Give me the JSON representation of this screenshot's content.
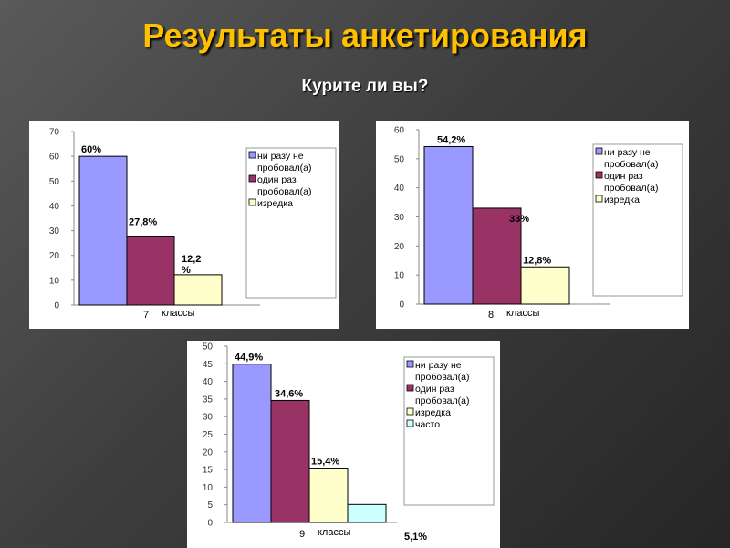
{
  "header": {
    "title": "Результаты анкетирования",
    "subtitle": "Курите ли вы?"
  },
  "colors": {
    "series": [
      "#9999ff",
      "#993366",
      "#ffffcc",
      "#ccffff"
    ],
    "accent_title": "#ffc000",
    "background": "#3e3e3e"
  },
  "chart_data": [
    {
      "type": "bar",
      "xlabel": "классы",
      "categories": [
        "7"
      ],
      "ylim": [
        0,
        70
      ],
      "yticks": [
        0,
        10,
        20,
        30,
        40,
        50,
        60,
        70
      ],
      "series": [
        {
          "name": "ни разу не пробовал(а)",
          "values": [
            60
          ],
          "label": "60%"
        },
        {
          "name": "один раз пробовал(а)",
          "values": [
            27.8
          ],
          "label": "27,8%"
        },
        {
          "name": "изредка",
          "values": [
            12.2
          ],
          "label": "12,2%"
        }
      ]
    },
    {
      "type": "bar",
      "xlabel": "классы",
      "categories": [
        "8"
      ],
      "ylim": [
        0,
        60
      ],
      "yticks": [
        0,
        10,
        20,
        30,
        40,
        50,
        60
      ],
      "series": [
        {
          "name": "ни разу не пробовал(а)",
          "values": [
            54.2
          ],
          "label": "54,2%"
        },
        {
          "name": "один раз пробовал(а)",
          "values": [
            33
          ],
          "label": "33%"
        },
        {
          "name": "изредка",
          "values": [
            12.8
          ],
          "label": "12,8%"
        }
      ]
    },
    {
      "type": "bar",
      "xlabel": "классы",
      "categories": [
        "9"
      ],
      "ylim": [
        0,
        50
      ],
      "yticks": [
        0,
        5,
        10,
        15,
        20,
        25,
        30,
        35,
        40,
        45,
        50
      ],
      "series": [
        {
          "name": "ни разу не пробовал(а)",
          "values": [
            44.9
          ],
          "label": "44,9%"
        },
        {
          "name": "один раз пробовал(а)",
          "values": [
            34.6
          ],
          "label": "34,6%"
        },
        {
          "name": "изредка",
          "values": [
            15.4
          ],
          "label": "15,4%"
        },
        {
          "name": "часто",
          "values": [
            5.1
          ],
          "label": "5,1%"
        }
      ]
    }
  ]
}
